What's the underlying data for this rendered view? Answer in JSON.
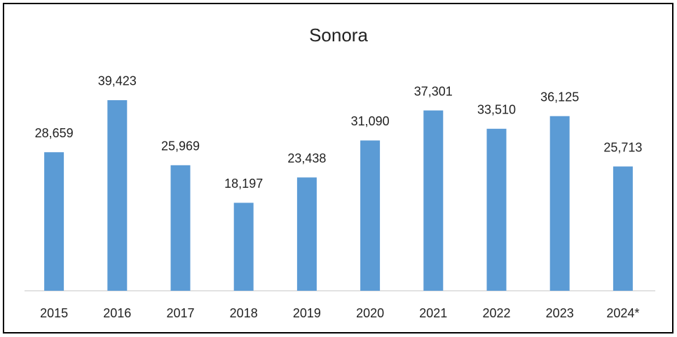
{
  "chart_data": {
    "type": "bar",
    "title": "Sonora",
    "categories": [
      "2015",
      "2016",
      "2017",
      "2018",
      "2019",
      "2020",
      "2021",
      "2022",
      "2023",
      "2024*"
    ],
    "values": [
      28659,
      39423,
      25969,
      18197,
      23438,
      31090,
      37301,
      33510,
      36125,
      25713
    ],
    "value_labels": [
      "28,659",
      "39,423",
      "25,969",
      "18,197",
      "23,438",
      "31,090",
      "37,301",
      "33,510",
      "36,125",
      "25,713"
    ],
    "color": "#5b9bd5",
    "ylim": [
      0,
      40000
    ]
  }
}
